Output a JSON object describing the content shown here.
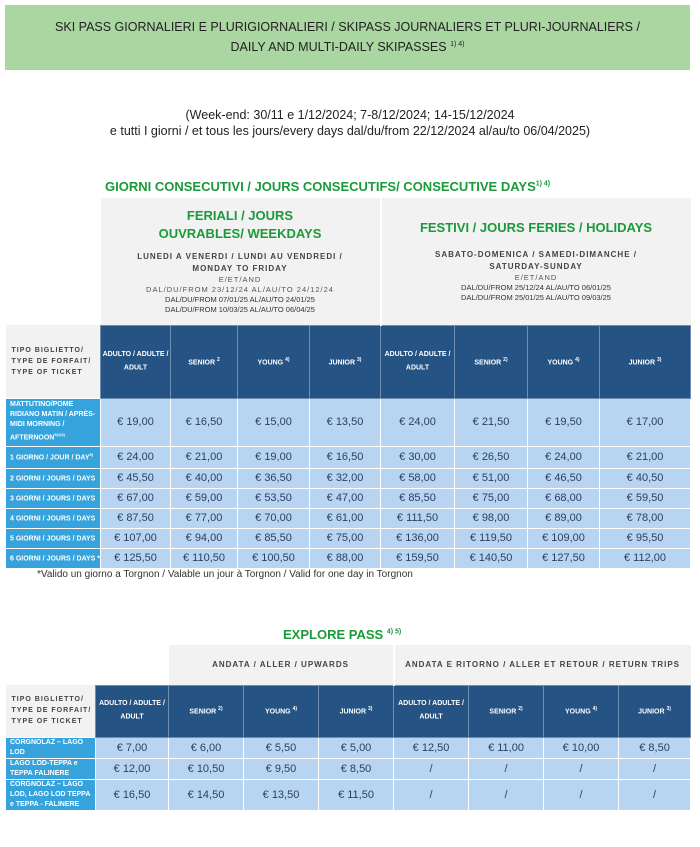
{
  "header": {
    "line1": "SKI PASS GIORNALIERI E PLURIGIORNALIERI / SKIPASS JOURNALIERS ET PLURI-JOURNALIERS /",
    "line2": "DAILY AND MULTI-DAILY SKIPASSES",
    "line2_sup": "1) 4)"
  },
  "dates": {
    "line1": "(Week-end: 30/11 e 1/12/2024; 7-8/12/2024; 14-15/12/2024",
    "line2": "e tutti I giorni / et tous les jours/every days dal/du/from 22/12/2024 al/au/to 06/04/2025)"
  },
  "consecutive": {
    "title": "GIORNI CONSECUTIVI / JOURS CONSECUTIFS/ CONSECUTIVE DAYS",
    "title_sup": "1) 4)",
    "weekdays": {
      "title": "FERIALI / JOURS OUVRABLES/ WEEKDAYS",
      "days": "LUNEDI A VENERDI / LUNDI AU VENDREDI / MONDAY TO FRIDAY",
      "and": "E/ET/AND",
      "period1": "DAL/DU/FROM 23/12/24 AL/AU/TO 24/12/24",
      "period2": "DAL/DU/FROM 07/01/25 AL/AU/TO 24/01/25",
      "period3": "DAL/DU/FROM 10/03/25 AL/AU/TO 06/04/25"
    },
    "holidays": {
      "title": "FESTIVI / JOURS FERIES / HOLIDAYS",
      "days": "SABATO-DOMENICA / SAMEDI-DIMANCHE / SATURDAY-SUNDAY",
      "and": "E/ET/AND",
      "period1": "DAL/DU/FROM 25/12/24 AL/AU/TO 06/01/25",
      "period2": "DAL/DU/FROM 25/01/25 AL/AU/TO 09/03/25"
    },
    "row_header": "TIPO BIGLIETTO/ TYPE DE FORFAIT/ TYPE OF TICKET",
    "columns": [
      {
        "label": "ADULTO / ADULTE / ADULT",
        "sup": ""
      },
      {
        "label": "SENIOR",
        "sup": "2"
      },
      {
        "label": "YOUNG",
        "sup": "4)"
      },
      {
        "label": "JUNIOR",
        "sup": "3)"
      },
      {
        "label": "ADULTO / ADULTE / ADULT",
        "sup": ""
      },
      {
        "label": "SENIOR",
        "sup": "2)"
      },
      {
        "label": "YOUNG",
        "sup": "4)"
      },
      {
        "label": "JUNIOR",
        "sup": "3)"
      }
    ],
    "rows": [
      {
        "label": "MATTUTINO/POME RIDIANO MATIN / APRÈS-MIDI MORNING / AFTERNOON",
        "sup": "5)1)3)",
        "values": [
          "€ 19,00",
          "€ 16,50",
          "€ 15,00",
          "€ 13,50",
          "€ 24,00",
          "€ 21,50",
          "€ 19,50",
          "€ 17,00"
        ]
      },
      {
        "label": "1 GIORNO / JOUR / DAY",
        "sup": "5)",
        "values": [
          "€ 24,00",
          "€ 21,00",
          "€ 19,00",
          "€ 16,50",
          "€ 30,00",
          "€ 26,50",
          "€ 24,00",
          "€ 21,00"
        ]
      },
      {
        "label": "2 GIORNI / JOURS / DAYS",
        "sup": "",
        "values": [
          "€ 45,50",
          "€ 40,00",
          "€ 36,50",
          "€ 32,00",
          "€ 58,00",
          "€ 51,00",
          "€ 46,50",
          "€ 40,50"
        ]
      },
      {
        "label": "3 GIORNI / JOURS / DAYS",
        "sup": "",
        "values": [
          "€ 67,00",
          "€ 59,00",
          "€ 53,50",
          "€ 47,00",
          "€ 85,50",
          "€ 75,00",
          "€ 68,00",
          "€ 59,50"
        ]
      },
      {
        "label": "4 GIORNI / JOURS / DAYS",
        "sup": "",
        "values": [
          "€ 87,50",
          "€ 77,00",
          "€ 70,00",
          "€ 61,00",
          "€ 111,50",
          "€ 98,00",
          "€ 89,00",
          "€ 78,00"
        ]
      },
      {
        "label": "5 GIORNI / JOURS / DAYS",
        "sup": "",
        "values": [
          "€ 107,00",
          "€ 94,00",
          "€ 85,50",
          "€ 75,00",
          "€ 136,00",
          "€ 119,50",
          "€ 109,00",
          "€ 95,50"
        ]
      },
      {
        "label": "6 GIORNI / JOURS / DAYS *",
        "sup": "",
        "values": [
          "€ 125,50",
          "€ 110,50",
          "€ 100,50",
          "€ 88,00",
          "€ 159,50",
          "€ 140,50",
          "€ 127,50",
          "€ 112,00"
        ]
      }
    ],
    "footnote": "*Valido un giorno a Torgnon / Valable un jour à Torgnon / Valid for one day in Torgnon"
  },
  "explore": {
    "title": "EXPLORE PASS",
    "title_sup": "4) 5)",
    "upwards": "ANDATA / ALLER / UPWARDS",
    "return": "ANDATA E RITORNO / ALLER ET RETOUR / RETURN TRIPS",
    "row_header": "TIPO BIGLIETTO/ TYPE DE FORFAIT/ TYPE OF TICKET",
    "columns": [
      {
        "label": "ADULTO / ADULTE / ADULT",
        "sup": ""
      },
      {
        "label": "SENIOR",
        "sup": "2)"
      },
      {
        "label": "YOUNG",
        "sup": "4)"
      },
      {
        "label": "JUNIOR",
        "sup": "3)"
      },
      {
        "label": "ADULTO / ADULTE / ADULT",
        "sup": ""
      },
      {
        "label": "SENIOR",
        "sup": "2)"
      },
      {
        "label": "YOUNG",
        "sup": "4)"
      },
      {
        "label": "JUNIOR",
        "sup": "3)"
      }
    ],
    "rows": [
      {
        "label": "CORGNOLAZ – LAGO LOD",
        "values": [
          "€ 7,00",
          "€ 6,00",
          "€ 5,50",
          "€ 5,00",
          "€ 12,50",
          "€ 11,00",
          "€ 10,00",
          "€ 8,50"
        ]
      },
      {
        "label": "LAGO LOD-TEPPA e TEPPA FALINERE",
        "values": [
          "€ 12,00",
          "€ 10,50",
          "€ 9,50",
          "€ 8,50",
          "/",
          "/",
          "/",
          "/"
        ]
      },
      {
        "label": "CORGNOLAZ – LAGO LOD, LAGO LOD TEPPA e TEPPA - FALINERE",
        "values": [
          "€ 16,50",
          "€ 14,50",
          "€ 13,50",
          "€ 11,50",
          "/",
          "/",
          "/",
          "/"
        ]
      }
    ]
  },
  "colors": {
    "header_bg": "#a9d6a1",
    "title_green": "#1a9a3a",
    "column_header": "#255384",
    "row_label": "#36a3dc",
    "cell": "#b7d5f0"
  }
}
